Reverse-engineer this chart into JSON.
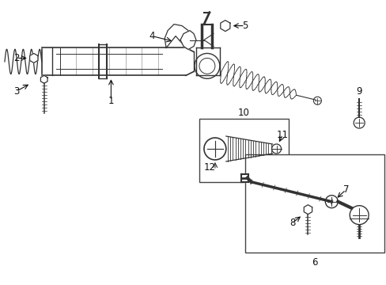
{
  "bg_color": "#ffffff",
  "fig_width": 4.89,
  "fig_height": 3.6,
  "dpi": 100,
  "line_color": "#333333",
  "label_color": "#111111",
  "label_fontsize": 8.5
}
